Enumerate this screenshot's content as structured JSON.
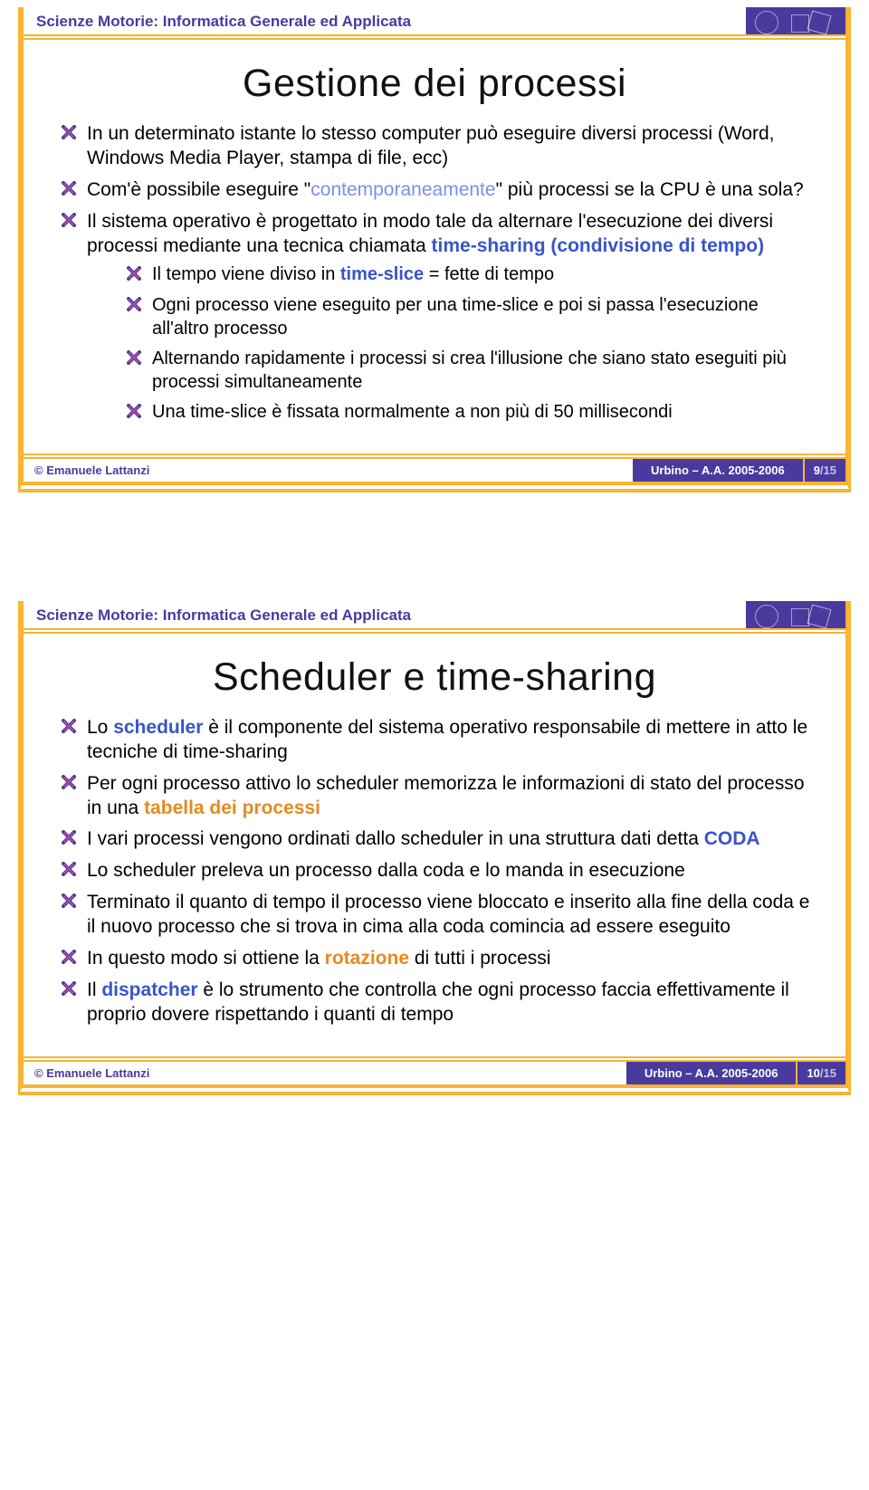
{
  "course_label": "Scienze Motorie: Informatica Generale ed Applicata",
  "footer": {
    "author": "© Emanuele Lattanzi",
    "place_year": "Urbino – A.A. 2005-2006",
    "total_pages": "/15"
  },
  "colors": {
    "frame": "#f8b432",
    "brand": "#4a3a9e",
    "text": "#000000",
    "kw_blue": "#3a54c9",
    "kw_orange": "#e68a1f",
    "kw_light": "#7a8fe8",
    "x_fill": "#a34d9e",
    "x_stroke": "#4a3a9e"
  },
  "slides": [
    {
      "title": "Gestione dei processi",
      "page": "9",
      "items": [
        {
          "html": "In un determinato istante lo stesso computer può eseguire diversi processi (Word, Windows Media Player, stampa di file, ecc)"
        },
        {
          "html": "Com'è possibile eseguire \"<span class='kw-light'>contemporaneamente</span>\" più processi se la CPU è una sola?"
        },
        {
          "html": "Il sistema operativo è progettato in modo tale da alternare l'esecuzione dei diversi processi mediante una tecnica chiamata <span class='kw-blue'>time-sharing (condivisione di tempo)</span>",
          "sub": [
            {
              "html": "Il tempo viene diviso in <span class='kw-blue'>time-slice</span> = fette di tempo"
            },
            {
              "html": "Ogni processo viene eseguito per una time-slice e poi si passa l'esecuzione all'altro processo"
            },
            {
              "html": "Alternando rapidamente i processi si crea l'illusione che siano stato eseguiti più processi simultaneamente"
            },
            {
              "html": "Una time-slice è fissata normalmente a non più di 50 millisecondi"
            }
          ]
        }
      ]
    },
    {
      "title": "Scheduler e time-sharing",
      "page": "10",
      "items": [
        {
          "html": "Lo <span class='kw-blue'>scheduler</span> è il componente del sistema operativo responsabile di mettere in atto le tecniche di time-sharing"
        },
        {
          "html": "Per ogni processo attivo lo scheduler memorizza le informazioni di stato del processo in una <span class='kw-org'>tabella dei processi</span>"
        },
        {
          "html": "I vari processi vengono ordinati dallo scheduler in una struttura dati detta <span class='kw-blue'>CODA</span>"
        },
        {
          "html": "Lo scheduler preleva un processo dalla coda e lo manda in esecuzione"
        },
        {
          "html": "Terminato il quanto di tempo il processo viene bloccato e inserito alla fine della coda e il nuovo processo che si trova in cima alla coda comincia ad essere eseguito"
        },
        {
          "html": "In questo modo si ottiene la <span class='kw-org'>rotazione</span> di tutti i processi"
        },
        {
          "html": "Il <span class='kw-blue'>dispatcher</span> è lo strumento che controlla che ogni processo faccia effettivamente il proprio dovere rispettando i quanti di tempo"
        }
      ]
    }
  ]
}
